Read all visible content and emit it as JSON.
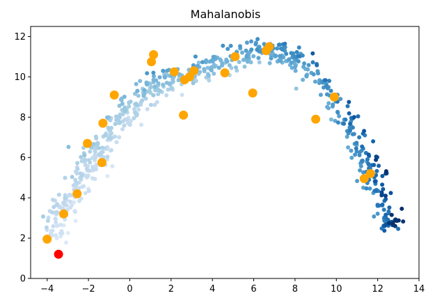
{
  "chart_data": {
    "type": "scatter",
    "title": "Mahalanobis",
    "xlabel": "",
    "ylabel": "",
    "xlim": [
      -4.8,
      14
    ],
    "ylim": [
      0,
      12.5
    ],
    "xticks": [
      -4,
      -2,
      0,
      2,
      4,
      6,
      8,
      10,
      12,
      14
    ],
    "yticks": [
      0,
      2,
      4,
      6,
      8,
      10,
      12
    ],
    "grid": false,
    "legend": "none",
    "colormap": "Blues",
    "colors": {
      "highlight": "#ffa500",
      "query": "#ff0000",
      "cmap_light": "#deebf7",
      "cmap_dark": "#08306b"
    },
    "background_cloud": {
      "shape": "arc",
      "spine": [
        {
          "x": -3.8,
          "y": 1.9
        },
        {
          "x": -3.5,
          "y": 3.0
        },
        {
          "x": -3.0,
          "y": 3.7
        },
        {
          "x": -2.5,
          "y": 4.6
        },
        {
          "x": -2.0,
          "y": 5.6
        },
        {
          "x": -1.4,
          "y": 6.3
        },
        {
          "x": -1.0,
          "y": 7.2
        },
        {
          "x": -0.5,
          "y": 8.0
        },
        {
          "x": 0.0,
          "y": 8.5
        },
        {
          "x": 0.6,
          "y": 9.0
        },
        {
          "x": 1.2,
          "y": 9.5
        },
        {
          "x": 2.0,
          "y": 9.9
        },
        {
          "x": 3.0,
          "y": 10.2
        },
        {
          "x": 4.0,
          "y": 10.6
        },
        {
          "x": 5.0,
          "y": 11.0
        },
        {
          "x": 6.0,
          "y": 11.2
        },
        {
          "x": 7.0,
          "y": 11.2
        },
        {
          "x": 8.0,
          "y": 10.9
        },
        {
          "x": 9.0,
          "y": 10.2
        },
        {
          "x": 10.0,
          "y": 8.8
        },
        {
          "x": 10.8,
          "y": 7.2
        },
        {
          "x": 11.5,
          "y": 5.8
        },
        {
          "x": 12.0,
          "y": 4.6
        },
        {
          "x": 12.5,
          "y": 3.2
        },
        {
          "x": 12.6,
          "y": 2.5
        }
      ],
      "spread": 0.55,
      "count": 700
    },
    "highlighted_points": [
      {
        "x": -4.0,
        "y": 1.95
      },
      {
        "x": -3.2,
        "y": 3.2
      },
      {
        "x": -2.55,
        "y": 4.2
      },
      {
        "x": -2.05,
        "y": 6.7
      },
      {
        "x": -1.35,
        "y": 5.75
      },
      {
        "x": -1.3,
        "y": 7.7
      },
      {
        "x": -0.75,
        "y": 9.1
      },
      {
        "x": 1.05,
        "y": 10.75
      },
      {
        "x": 1.15,
        "y": 11.1
      },
      {
        "x": 2.15,
        "y": 10.25
      },
      {
        "x": 2.6,
        "y": 8.1
      },
      {
        "x": 2.65,
        "y": 9.85
      },
      {
        "x": 2.9,
        "y": 10.0
      },
      {
        "x": 3.1,
        "y": 10.3
      },
      {
        "x": 4.6,
        "y": 10.2
      },
      {
        "x": 5.1,
        "y": 11.0
      },
      {
        "x": 5.95,
        "y": 9.2
      },
      {
        "x": 6.6,
        "y": 11.3
      },
      {
        "x": 6.75,
        "y": 11.5
      },
      {
        "x": 9.0,
        "y": 7.9
      },
      {
        "x": 9.9,
        "y": 9.0
      },
      {
        "x": 11.35,
        "y": 4.95
      },
      {
        "x": 11.65,
        "y": 5.2
      }
    ],
    "query_point": {
      "x": -3.45,
      "y": 1.2
    }
  }
}
